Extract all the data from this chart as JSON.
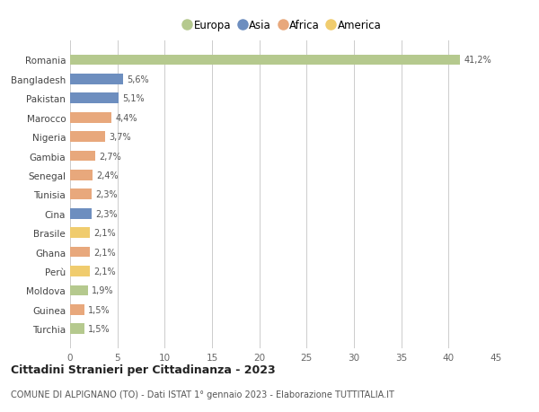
{
  "categories": [
    "Romania",
    "Bangladesh",
    "Pakistan",
    "Marocco",
    "Nigeria",
    "Gambia",
    "Senegal",
    "Tunisia",
    "Cina",
    "Brasile",
    "Ghana",
    "Perù",
    "Moldova",
    "Guinea",
    "Turchia"
  ],
  "values": [
    41.2,
    5.6,
    5.1,
    4.4,
    3.7,
    2.7,
    2.4,
    2.3,
    2.3,
    2.1,
    2.1,
    2.1,
    1.9,
    1.5,
    1.5
  ],
  "labels": [
    "41,2%",
    "5,6%",
    "5,1%",
    "4,4%",
    "3,7%",
    "2,7%",
    "2,4%",
    "2,3%",
    "2,3%",
    "2,1%",
    "2,1%",
    "2,1%",
    "1,9%",
    "1,5%",
    "1,5%"
  ],
  "bar_colors": [
    "#b5c98e",
    "#6d8ebf",
    "#6d8ebf",
    "#e8a87c",
    "#e8a87c",
    "#e8a87c",
    "#e8a87c",
    "#e8a87c",
    "#6d8ebf",
    "#f0cc6e",
    "#e8a87c",
    "#f0cc6e",
    "#b5c98e",
    "#e8a87c",
    "#b5c98e"
  ],
  "legend_labels": [
    "Europa",
    "Asia",
    "Africa",
    "America"
  ],
  "legend_colors": [
    "#b5c98e",
    "#6d8ebf",
    "#e8a87c",
    "#f0cc6e"
  ],
  "title": "Cittadini Stranieri per Cittadinanza - 2023",
  "subtitle": "COMUNE DI ALPIGNANO (TO) - Dati ISTAT 1° gennaio 2023 - Elaborazione TUTTITALIA.IT",
  "xlim": [
    0,
    45
  ],
  "xticks": [
    0,
    5,
    10,
    15,
    20,
    25,
    30,
    35,
    40,
    45
  ],
  "background_color": "#ffffff",
  "grid_color": "#cccccc"
}
